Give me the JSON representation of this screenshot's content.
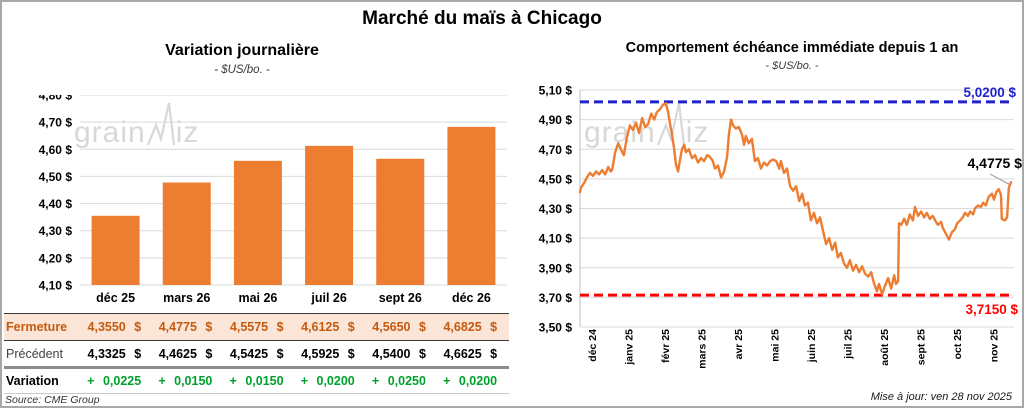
{
  "page": {
    "title": "Marché du maïs à Chicago",
    "source": "Source: CME Group",
    "updated": "Mise à jour: ven 28 nov 2025",
    "watermark": {
      "prefix": "grain",
      "suffix": "iz",
      "name": "grainwiz-logo"
    }
  },
  "colors": {
    "accent_orange": "#ED7D31",
    "resistance_blue": "#2222CC",
    "support_red": "#FF0000",
    "close_brown": "#C55A11",
    "close_bg_peach": "#FBE5D6",
    "variation_green": "#00A02C",
    "gridline_gray": "#D9D9D9"
  },
  "chart_data": [
    {
      "type": "bar",
      "title": "Variation journalière",
      "subtitle": "- $US/bo. -",
      "categories": [
        "déc 25",
        "mars 26",
        "mai 26",
        "juil 26",
        "sept 26",
        "déc 26"
      ],
      "values": [
        4.355,
        4.4775,
        4.5575,
        4.6125,
        4.565,
        4.6825
      ],
      "ylim": [
        4.1,
        4.8
      ],
      "ystep": 0.1,
      "bar_color": "#ED7D31",
      "grid": true,
      "ylabel_format": "fr-dollar"
    },
    {
      "type": "line",
      "title": "Comportement échéance immédiate depuis 1 an",
      "subtitle": "- $US/bo. -",
      "ylim": [
        3.5,
        5.1
      ],
      "ystep": 0.2,
      "x_ticklabels": [
        "déc 24",
        "janv 25",
        "févr 25",
        "mars 25",
        "avr 25",
        "mai 25",
        "juin 25",
        "juil 25",
        "août 25",
        "sept 25",
        "oct 25",
        "nov 25"
      ],
      "resistance": {
        "value": 5.02,
        "label": "5,0200 $",
        "color": "#2222CC"
      },
      "support": {
        "value": 3.715,
        "label": "3,7150 $",
        "color": "#FF0000"
      },
      "last": {
        "value": 4.4775,
        "label": "4,4775 $"
      },
      "line_color": "#ED7D31",
      "points": [
        [
          0,
          4.41
        ],
        [
          0.2,
          4.44
        ],
        [
          0.9,
          4.47
        ],
        [
          1.6,
          4.51
        ],
        [
          2.3,
          4.54
        ],
        [
          3,
          4.52
        ],
        [
          3.7,
          4.55
        ],
        [
          4.4,
          4.53
        ],
        [
          5.1,
          4.56
        ],
        [
          5.8,
          4.53
        ],
        [
          6.5,
          4.58
        ],
        [
          7.1,
          4.55
        ],
        [
          7.4,
          4.56
        ],
        [
          8.1,
          4.68
        ],
        [
          8.8,
          4.74
        ],
        [
          9.4,
          4.7
        ],
        [
          10.1,
          4.66
        ],
        [
          10.8,
          4.78
        ],
        [
          11.5,
          4.86
        ],
        [
          12.2,
          4.83
        ],
        [
          12.9,
          4.88
        ],
        [
          13.6,
          4.81
        ],
        [
          14.3,
          4.91
        ],
        [
          15,
          4.85
        ],
        [
          15.7,
          4.87
        ],
        [
          16.4,
          4.94
        ],
        [
          17.1,
          4.9
        ],
        [
          17.7,
          4.95
        ],
        [
          18.4,
          4.97
        ],
        [
          19.1,
          5.0
        ],
        [
          19.8,
          5.01
        ],
        [
          20.3,
          4.95
        ],
        [
          20.7,
          4.88
        ],
        [
          21.2,
          4.8
        ],
        [
          21.7,
          4.7
        ],
        [
          22.1,
          4.6
        ],
        [
          22.6,
          4.55
        ],
        [
          23,
          4.62
        ],
        [
          23.5,
          4.7
        ],
        [
          24,
          4.73
        ],
        [
          24.4,
          4.68
        ],
        [
          25.1,
          4.7
        ],
        [
          25.8,
          4.64
        ],
        [
          26.5,
          4.66
        ],
        [
          27.2,
          4.61
        ],
        [
          27.9,
          4.64
        ],
        [
          28.6,
          4.62
        ],
        [
          29.3,
          4.66
        ],
        [
          29.9,
          4.65
        ],
        [
          30.6,
          4.62
        ],
        [
          31.1,
          4.57
        ],
        [
          31.8,
          4.59
        ],
        [
          32.5,
          4.51
        ],
        [
          33.2,
          4.55
        ],
        [
          33.9,
          4.65
        ],
        [
          34.3,
          4.8
        ],
        [
          34.8,
          4.9
        ],
        [
          35.3,
          4.86
        ],
        [
          35.9,
          4.84
        ],
        [
          36.6,
          4.85
        ],
        [
          37.3,
          4.8
        ],
        [
          37.8,
          4.73
        ],
        [
          38.2,
          4.79
        ],
        [
          38.9,
          4.74
        ],
        [
          39.6,
          4.77
        ],
        [
          40.3,
          4.62
        ],
        [
          41,
          4.64
        ],
        [
          41.7,
          4.57
        ],
        [
          42.4,
          4.61
        ],
        [
          43.1,
          4.59
        ],
        [
          43.8,
          4.62
        ],
        [
          44.5,
          4.63
        ],
        [
          45.2,
          4.62
        ],
        [
          45.9,
          4.57
        ],
        [
          46.3,
          4.62
        ],
        [
          47,
          4.54
        ],
        [
          47.7,
          4.57
        ],
        [
          48.4,
          4.45
        ],
        [
          49.1,
          4.42
        ],
        [
          49.8,
          4.45
        ],
        [
          50.5,
          4.35
        ],
        [
          51.2,
          4.4
        ],
        [
          51.8,
          4.32
        ],
        [
          52.5,
          4.34
        ],
        [
          53.2,
          4.22
        ],
        [
          53.9,
          4.27
        ],
        [
          54.6,
          4.2
        ],
        [
          55.3,
          4.24
        ],
        [
          56,
          4.15
        ],
        [
          56.7,
          4.06
        ],
        [
          57.4,
          4.1
        ],
        [
          58.1,
          4.02
        ],
        [
          58.8,
          4.07
        ],
        [
          59.4,
          3.97
        ],
        [
          60.1,
          4.0
        ],
        [
          60.8,
          3.93
        ],
        [
          61.5,
          3.9
        ],
        [
          62.2,
          3.95
        ],
        [
          62.9,
          3.88
        ],
        [
          63.6,
          3.92
        ],
        [
          64.3,
          3.87
        ],
        [
          65,
          3.91
        ],
        [
          65.7,
          3.86
        ],
        [
          66.4,
          3.84
        ],
        [
          67.1,
          3.87
        ],
        [
          67.7,
          3.8
        ],
        [
          68.4,
          3.74
        ],
        [
          68.9,
          3.79
        ],
        [
          69.6,
          3.72
        ],
        [
          70.3,
          3.78
        ],
        [
          71,
          3.83
        ],
        [
          71.7,
          3.76
        ],
        [
          72.4,
          3.85
        ],
        [
          72.8,
          3.79
        ],
        [
          73.3,
          3.81
        ],
        [
          73.5,
          4.2
        ],
        [
          74,
          4.19
        ],
        [
          74.7,
          4.23
        ],
        [
          75.3,
          4.19
        ],
        [
          76,
          4.26
        ],
        [
          76.7,
          4.22
        ],
        [
          77.2,
          4.31
        ],
        [
          77.9,
          4.25
        ],
        [
          78.6,
          4.28
        ],
        [
          79.3,
          4.24
        ],
        [
          79.9,
          4.27
        ],
        [
          80.6,
          4.23
        ],
        [
          81.3,
          4.25
        ],
        [
          82,
          4.21
        ],
        [
          82.5,
          4.19
        ],
        [
          83.2,
          4.21
        ],
        [
          83.6,
          4.17
        ],
        [
          84.3,
          4.13
        ],
        [
          85,
          4.09
        ],
        [
          85.7,
          4.14
        ],
        [
          86.4,
          4.16
        ],
        [
          86.9,
          4.2
        ],
        [
          87.6,
          4.22
        ],
        [
          88.2,
          4.24
        ],
        [
          88.7,
          4.27
        ],
        [
          89.4,
          4.25
        ],
        [
          89.9,
          4.28
        ],
        [
          90.6,
          4.26
        ],
        [
          91,
          4.3
        ],
        [
          91.7,
          4.32
        ],
        [
          92.4,
          4.31
        ],
        [
          92.9,
          4.34
        ],
        [
          93.5,
          4.32
        ],
        [
          94.2,
          4.38
        ],
        [
          94.9,
          4.4
        ],
        [
          95.4,
          4.36
        ],
        [
          95.9,
          4.41
        ],
        [
          96.5,
          4.43
        ],
        [
          97,
          4.39
        ],
        [
          97.2,
          4.23
        ],
        [
          97.9,
          4.22
        ],
        [
          98.4,
          4.24
        ],
        [
          98.8,
          4.44
        ],
        [
          99.3,
          4.4775
        ]
      ]
    }
  ],
  "table": {
    "columns": [
      "déc 25",
      "mars 26",
      "mai 26",
      "juil 26",
      "sept 26",
      "déc 26"
    ],
    "rows": [
      {
        "label": "Fermeture",
        "style": "close",
        "values": [
          "4,3550 $",
          "4,4775 $",
          "4,5575 $",
          "4,6125 $",
          "4,5650 $",
          "4,6825 $"
        ]
      },
      {
        "label": "Précédent",
        "style": "prev",
        "values": [
          "4,3325 $",
          "4,4625 $",
          "4,5425 $",
          "4,5925 $",
          "4,5400 $",
          "4,6625 $"
        ]
      },
      {
        "label": "Variation",
        "style": "var",
        "values": [
          "+ 0,0225",
          "+ 0,0150",
          "+ 0,0150",
          "+ 0,0200",
          "+ 0,0250",
          "+ 0,0200"
        ]
      }
    ]
  }
}
